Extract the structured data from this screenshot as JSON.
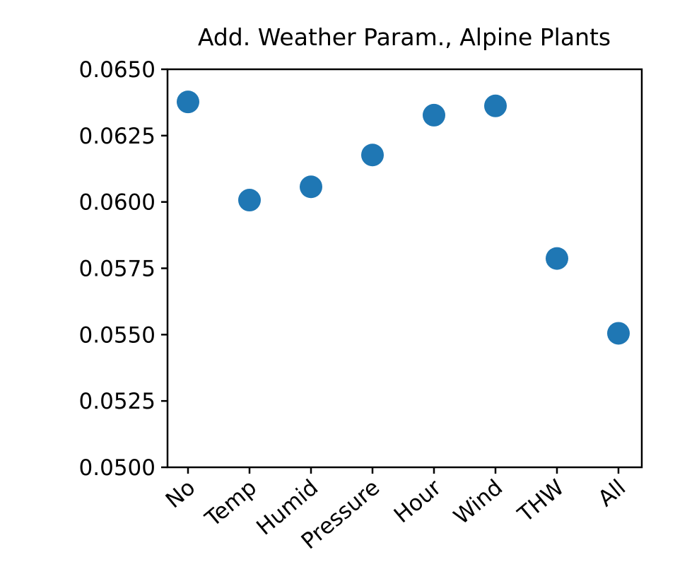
{
  "chart_data": {
    "type": "scatter",
    "title": "Add. Weather Param., Alpine Plants",
    "xlabel": "",
    "ylabel": "",
    "categories": [
      "No",
      "Temp",
      "Humid",
      "Pressure",
      "Hour",
      "Wind",
      "THW",
      "All"
    ],
    "values": [
      0.06377,
      0.06007,
      0.06057,
      0.06177,
      0.06327,
      0.06362,
      0.05787,
      0.05505
    ],
    "ylim": [
      0.05,
      0.065
    ],
    "yticks": [
      "0.0500",
      "0.0525",
      "0.0550",
      "0.0575",
      "0.0600",
      "0.0625",
      "0.0650"
    ],
    "grid": false,
    "color": "#1f77b4"
  }
}
